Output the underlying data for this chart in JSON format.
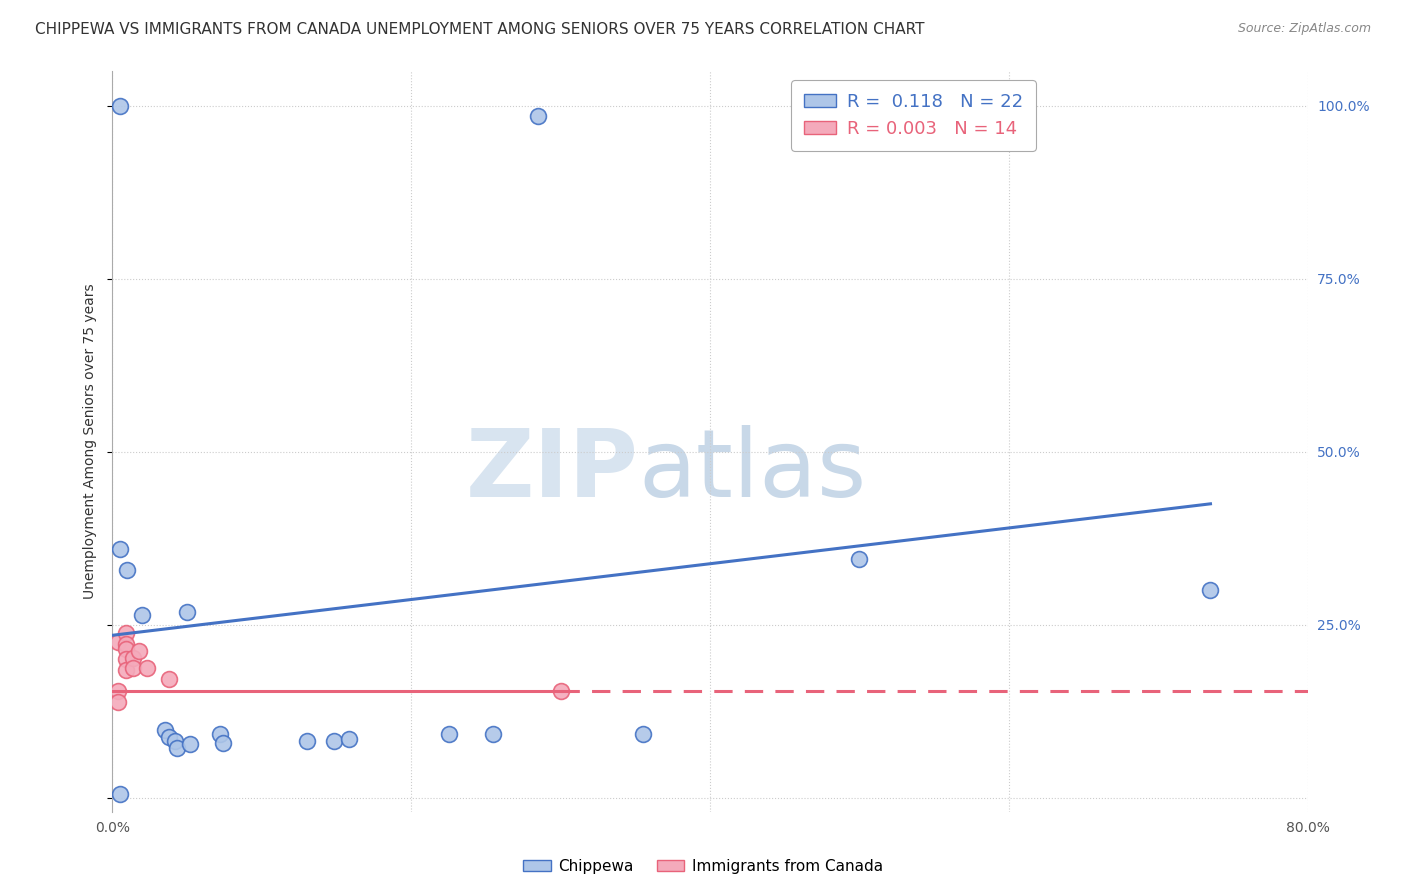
{
  "title": "CHIPPEWA VS IMMIGRANTS FROM CANADA UNEMPLOYMENT AMONG SENIORS OVER 75 YEARS CORRELATION CHART",
  "source": "Source: ZipAtlas.com",
  "ylabel": "Unemployment Among Seniors over 75 years",
  "xlim": [
    0.0,
    0.8
  ],
  "ylim": [
    -0.02,
    1.05
  ],
  "watermark_zip": "ZIP",
  "watermark_atlas": "atlas",
  "legend": {
    "chippewa_R": "0.118",
    "chippewa_N": "22",
    "canada_R": "0.003",
    "canada_N": "14"
  },
  "chippewa_points": [
    [
      0.005,
      1.0
    ],
    [
      0.285,
      0.985
    ],
    [
      0.005,
      0.36
    ],
    [
      0.01,
      0.33
    ],
    [
      0.02,
      0.265
    ],
    [
      0.05,
      0.268
    ],
    [
      0.035,
      0.098
    ],
    [
      0.038,
      0.088
    ],
    [
      0.042,
      0.082
    ],
    [
      0.043,
      0.072
    ],
    [
      0.052,
      0.078
    ],
    [
      0.072,
      0.092
    ],
    [
      0.074,
      0.08
    ],
    [
      0.13,
      0.082
    ],
    [
      0.148,
      0.082
    ],
    [
      0.158,
      0.085
    ],
    [
      0.225,
      0.092
    ],
    [
      0.255,
      0.092
    ],
    [
      0.355,
      0.092
    ],
    [
      0.5,
      0.345
    ],
    [
      0.735,
      0.3
    ],
    [
      0.005,
      0.005
    ]
  ],
  "canada_points": [
    [
      0.004,
      0.225
    ],
    [
      0.009,
      0.238
    ],
    [
      0.009,
      0.222
    ],
    [
      0.009,
      0.215
    ],
    [
      0.009,
      0.2
    ],
    [
      0.009,
      0.185
    ],
    [
      0.014,
      0.202
    ],
    [
      0.014,
      0.187
    ],
    [
      0.018,
      0.212
    ],
    [
      0.023,
      0.187
    ],
    [
      0.038,
      0.172
    ],
    [
      0.004,
      0.155
    ],
    [
      0.3,
      0.155
    ],
    [
      0.004,
      0.138
    ]
  ],
  "chippewa_line": {
    "x0": 0.0,
    "y0": 0.235,
    "x1": 0.735,
    "y1": 0.425,
    "color": "#4472C4",
    "style": "solid"
  },
  "canada_line_solid": {
    "x0": 0.0,
    "y0": 0.155,
    "x1": 0.3,
    "y1": 0.155,
    "color": "#E8637A",
    "style": "solid"
  },
  "canada_line_dashed": {
    "x0": 0.3,
    "y0": 0.155,
    "x1": 0.8,
    "y1": 0.155,
    "color": "#E8637A",
    "style": "dashed"
  },
  "chippewa_color": "#AEC6E8",
  "chippewa_edge_color": "#4472C4",
  "canada_color": "#F4AABB",
  "canada_edge_color": "#E8637A",
  "background_color": "#FFFFFF",
  "grid_color": "#CCCCCC",
  "title_fontsize": 11,
  "source_fontsize": 9,
  "watermark_color_zip": "#D8E4F0",
  "watermark_color_atlas": "#C8D8E8",
  "marker_size": 130,
  "ytick_vals": [
    0.0,
    0.25,
    0.5,
    0.75,
    1.0
  ],
  "ytick_labels": [
    "",
    "25.0%",
    "50.0%",
    "75.0%",
    "100.0%"
  ],
  "xtick_vals": [
    0.0,
    0.2,
    0.4,
    0.6,
    0.8
  ],
  "xtick_labels": [
    "0.0%",
    "",
    "",
    "",
    "80.0%"
  ]
}
